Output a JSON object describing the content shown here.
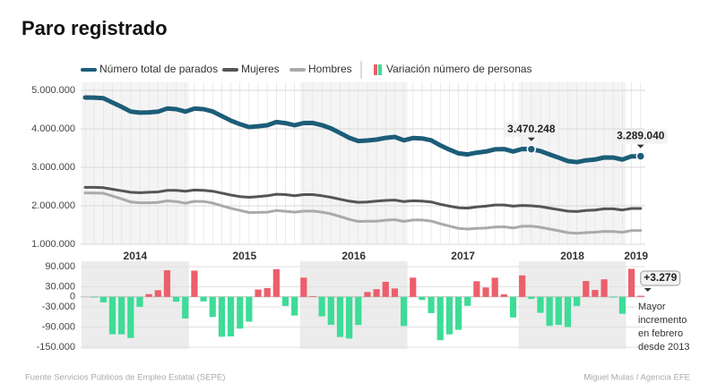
{
  "chart_data": [
    {
      "type": "line",
      "title": "Paro registrado",
      "source": "Fuente Servicios Públicos de Empleo Estatal (SEPE)",
      "credit": "Miguel Mulas / Agencia EFE",
      "categories": [
        "2014",
        null,
        null,
        null,
        null,
        null,
        null,
        null,
        null,
        null,
        null,
        null,
        "2015",
        null,
        null,
        null,
        null,
        null,
        null,
        null,
        null,
        null,
        null,
        null,
        "2016",
        null,
        null,
        null,
        null,
        null,
        null,
        null,
        null,
        null,
        null,
        null,
        "2017",
        null,
        null,
        null,
        null,
        null,
        null,
        null,
        null,
        null,
        null,
        null,
        "2018",
        null,
        null,
        null,
        null,
        null,
        null,
        null,
        null,
        null,
        null,
        null,
        "2019",
        null
      ],
      "ylim": [
        1000000,
        5000000
      ],
      "yticks": [
        {
          "value": 5000000,
          "label": "5.000.000"
        },
        {
          "value": 4000000,
          "label": "4.000.000"
        },
        {
          "value": 3000000,
          "label": "3.000.000"
        },
        {
          "value": 2000000,
          "label": "2.000.000"
        },
        {
          "value": 1000000,
          "label": "1.000.000"
        }
      ],
      "grid": true,
      "series": [
        {
          "name": "Número total de parados",
          "color": "#1c5d78",
          "values": [
            4814435,
            4812486,
            4795866,
            4684301,
            4572385,
            4449701,
            4419860,
            4427930,
            4447650,
            4526804,
            4512153,
            4447711,
            4525691,
            4512116,
            4451939,
            4333016,
            4215031,
            4120304,
            4046276,
            4067955,
            4094042,
            4176369,
            4149298,
            4093508,
            4150755,
            4152986,
            4094770,
            4011171,
            3891403,
            3767054,
            3683061,
            3697496,
            3720297,
            3764982,
            3789823,
            3702974,
            3760231,
            3750876,
            3702317,
            3573036,
            3461128,
            3362811,
            3335924,
            3382324,
            3410182,
            3467026,
            3474281,
            3412781,
            3476528,
            3470248,
            3422551,
            3335868,
            3252130,
            3162162,
            3135021,
            3182068,
            3202509,
            3254703,
            3252867,
            3202297,
            3285761,
            3289040
          ],
          "value_labels": [
            null,
            null,
            null,
            null,
            null,
            null,
            null,
            null,
            null,
            null,
            null,
            null,
            null,
            null,
            null,
            null,
            null,
            null,
            null,
            null,
            null,
            null,
            null,
            null,
            null,
            null,
            null,
            null,
            null,
            null,
            null,
            null,
            null,
            null,
            null,
            null,
            null,
            null,
            null,
            null,
            null,
            null,
            null,
            null,
            null,
            null,
            null,
            null,
            null,
            "3.470.248",
            null,
            null,
            null,
            null,
            null,
            null,
            null,
            null,
            null,
            null,
            null,
            "3.289.040"
          ]
        },
        {
          "name": "Mujeres",
          "color": "#555555",
          "values": [
            2480000,
            2480000,
            2470000,
            2430000,
            2390000,
            2350000,
            2340000,
            2350000,
            2360000,
            2400000,
            2400000,
            2380000,
            2410000,
            2400000,
            2380000,
            2330000,
            2280000,
            2240000,
            2220000,
            2240000,
            2260000,
            2300000,
            2290000,
            2260000,
            2290000,
            2290000,
            2260000,
            2220000,
            2170000,
            2120000,
            2090000,
            2100000,
            2120000,
            2140000,
            2150000,
            2110000,
            2130000,
            2120000,
            2100000,
            2040000,
            1990000,
            1950000,
            1940000,
            1970000,
            1990000,
            2020000,
            2020000,
            1990000,
            2010000,
            2000000,
            1980000,
            1940000,
            1900000,
            1860000,
            1850000,
            1880000,
            1890000,
            1920000,
            1920000,
            1890000,
            1930000,
            1930000
          ]
        },
        {
          "name": "Hombres",
          "color": "#aaaaaa",
          "values": [
            2334000,
            2332000,
            2326000,
            2254000,
            2182000,
            2100000,
            2080000,
            2078000,
            2088000,
            2127000,
            2112000,
            2068000,
            2116000,
            2112000,
            2072000,
            2003000,
            1935000,
            1880000,
            1826000,
            1828000,
            1834000,
            1876000,
            1859000,
            1834000,
            1861000,
            1863000,
            1835000,
            1791000,
            1721000,
            1647000,
            1593000,
            1597000,
            1600000,
            1625000,
            1640000,
            1593000,
            1630000,
            1631000,
            1602000,
            1533000,
            1471000,
            1413000,
            1396000,
            1412000,
            1420000,
            1447000,
            1454000,
            1423000,
            1467000,
            1470000,
            1443000,
            1396000,
            1352000,
            1302000,
            1285000,
            1302000,
            1313000,
            1335000,
            1333000,
            1312000,
            1356000,
            1359000
          ]
        }
      ]
    },
    {
      "type": "bar",
      "ylim": [
        -150000,
        90000
      ],
      "yticks": [
        {
          "value": 90000,
          "label": "90.000"
        },
        {
          "value": 30000,
          "label": "30.000"
        },
        0,
        {
          "value": -30000,
          "label": "-30.000"
        },
        {
          "value": -90000,
          "label": "-90.000"
        },
        {
          "value": -150000,
          "label": "-150.000"
        }
      ],
      "note": [
        "Mayor",
        "incremento",
        "en febrero",
        "desde 2013"
      ],
      "series": [
        {
          "name": "Variación número de personas",
          "color_positive": "#ec5f6b",
          "color_negative": "#3ddc97",
          "values": [
            null,
            -1949,
            -16620,
            -111565,
            -111916,
            -122684,
            -29841,
            8070,
            19720,
            79154,
            -14651,
            -64442,
            77980,
            -13575,
            -60177,
            -118923,
            -117985,
            -94727,
            -74028,
            21679,
            26087,
            82327,
            -27071,
            -55790,
            57247,
            2231,
            -58216,
            -83599,
            -119768,
            -124349,
            -83993,
            14435,
            22801,
            44685,
            24841,
            -86849,
            57257,
            -9355,
            -48559,
            -129281,
            -111908,
            -98317,
            -26887,
            46400,
            27858,
            56844,
            7255,
            -61500,
            63747,
            -6280,
            -47697,
            -86683,
            -83738,
            -89968,
            -27141,
            47047,
            20441,
            52194,
            -1836,
            -50570,
            83464,
            3279
          ],
          "value_labels": [
            null,
            null,
            null,
            null,
            null,
            null,
            null,
            null,
            null,
            null,
            null,
            null,
            null,
            null,
            null,
            null,
            null,
            null,
            null,
            null,
            null,
            null,
            null,
            null,
            null,
            null,
            null,
            null,
            null,
            null,
            null,
            null,
            null,
            null,
            null,
            null,
            null,
            null,
            null,
            null,
            null,
            null,
            null,
            null,
            null,
            null,
            null,
            null,
            null,
            null,
            null,
            null,
            null,
            null,
            null,
            null,
            null,
            null,
            null,
            null,
            null,
            "+3.279"
          ]
        }
      ]
    }
  ]
}
